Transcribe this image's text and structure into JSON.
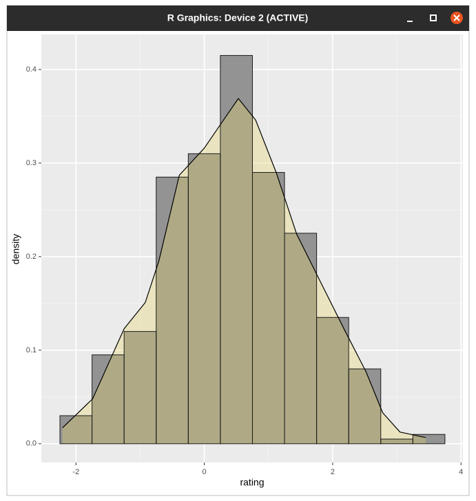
{
  "window_title": "R Graphics: Device 2 (ACTIVE)",
  "chart_data": {
    "type": "histogram",
    "xlabel": "rating",
    "ylabel": "density",
    "bins": [
      -2.25,
      -1.75,
      -1.25,
      -0.75,
      -0.25,
      0.25,
      0.75,
      1.25,
      1.75,
      2.25,
      2.75,
      3.25,
      3.75
    ],
    "values": [
      0.03,
      0.095,
      0.12,
      0.285,
      0.31,
      0.415,
      0.29,
      0.225,
      0.135,
      0.08,
      0.005,
      0.01
    ],
    "color": "#939393",
    "density": {
      "x": [
        -2.21,
        -1.74,
        -1.25,
        -0.92,
        -0.71,
        -0.39,
        0,
        0.26,
        0.53,
        0.8,
        1.12,
        1.44,
        1.76,
        2.19,
        2.52,
        2.78,
        3.05,
        3.45
      ],
      "values": [
        0.017,
        0.048,
        0.123,
        0.151,
        0.195,
        0.287,
        0.316,
        0.342,
        0.369,
        0.346,
        0.29,
        0.224,
        0.18,
        0.121,
        0.077,
        0.033,
        0.0125,
        0.0066
      ],
      "color": "#000000",
      "fill": "rgba(230,215,110,0.35)"
    },
    "xlim": [
      -2.54,
      4.03
    ],
    "ylim": [
      -0.02,
      0.4375
    ],
    "xticks": [
      -2,
      0,
      2,
      4
    ],
    "yticks": [
      {
        "value": 0,
        "label": "0.0"
      },
      0.1,
      0.2,
      0.3,
      0.4
    ],
    "minor_xticks": [
      -1,
      1,
      3
    ],
    "minor_yticks": [
      0.05,
      0.15,
      0.25,
      0.35
    ],
    "grid": true
  }
}
